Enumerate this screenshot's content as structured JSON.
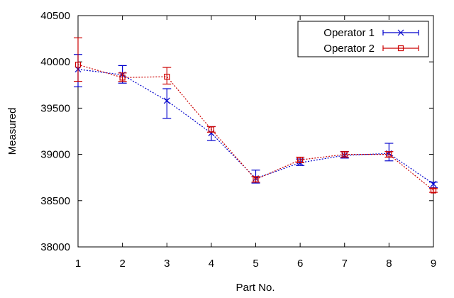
{
  "chart_data": {
    "type": "line",
    "xlabel": "Part No.",
    "ylabel": "Measured",
    "x": [
      1,
      2,
      3,
      4,
      5,
      6,
      7,
      8,
      9
    ],
    "xlim": [
      1,
      9
    ],
    "ylim": [
      38000,
      40500
    ],
    "xticks": [
      "1",
      "2",
      "3",
      "4",
      "5",
      "6",
      "7",
      "8",
      "9"
    ],
    "yticks": [
      "38000",
      "38500",
      "39000",
      "39500",
      "40000",
      "40500"
    ],
    "grid": false,
    "legend_position": "top-right",
    "series": [
      {
        "name": "Operator 1",
        "color": "#0000cc",
        "marker": "x",
        "values": [
          39920,
          39860,
          39580,
          39230,
          38740,
          38910,
          38990,
          39010,
          38680
        ],
        "error_low": [
          39730,
          39770,
          39390,
          39150,
          38690,
          38880,
          38960,
          38930,
          38640
        ],
        "error_high": [
          40080,
          39960,
          39710,
          39300,
          38830,
          38950,
          39030,
          39120,
          38700
        ]
      },
      {
        "name": "Operator 2",
        "color": "#cc0000",
        "marker": "square",
        "values": [
          39970,
          39830,
          39840,
          39270,
          38730,
          38940,
          39000,
          39000,
          38610
        ],
        "error_low": [
          39790,
          39790,
          39760,
          39240,
          38700,
          38910,
          38970,
          38970,
          38590
        ],
        "error_high": [
          40260,
          39880,
          39940,
          39300,
          38760,
          38970,
          39030,
          39030,
          38630
        ]
      }
    ]
  }
}
